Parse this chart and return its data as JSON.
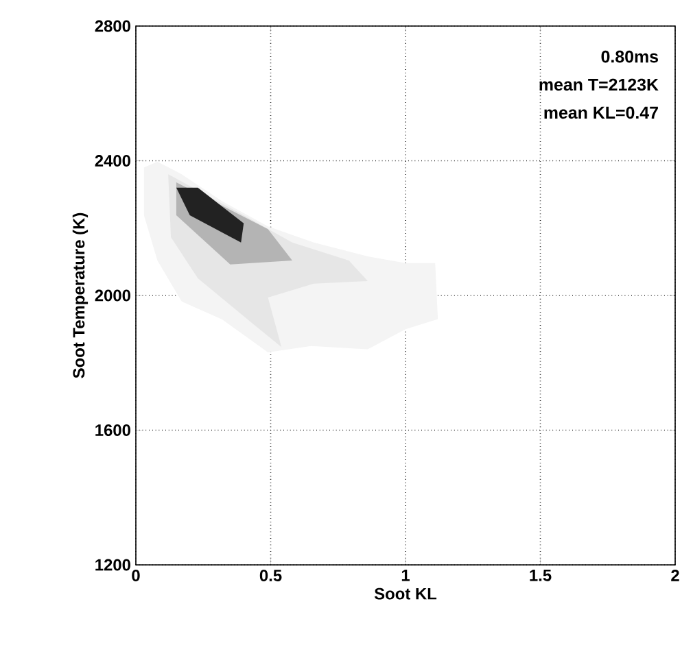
{
  "chart_data": {
    "type": "area",
    "xlabel": "Soot KL",
    "ylabel": "Soot Temperature (K)",
    "annotations": [
      "0.80ms",
      "mean T=2123K",
      "mean KL=0.47"
    ],
    "xlim": [
      0,
      2
    ],
    "ylim": [
      1200,
      2800
    ],
    "xticks": [
      0,
      0.5,
      1,
      1.5,
      2
    ],
    "yticks": [
      1200,
      1600,
      2000,
      2400,
      2800
    ],
    "grid": true,
    "series": [
      {
        "color": "#f4f4f4",
        "x": [
          0.03,
          0.08,
          0.17,
          0.32,
          0.49,
          0.66,
          0.86,
          1.0,
          1.11,
          1.12,
          1.0,
          0.86,
          0.65,
          0.49,
          0.32,
          0.17,
          0.08,
          0.03,
          0.03
        ],
        "values": [
          2380,
          2397,
          2360,
          2280,
          2205,
          2157,
          2116,
          2096,
          2096,
          1930,
          1900,
          1840,
          1850,
          1831,
          1929,
          1982,
          2104,
          2238,
          2380
        ]
      },
      {
        "color": "#e6e6e6",
        "x": [
          0.12,
          0.4,
          0.58,
          0.79,
          0.86,
          0.66,
          0.49,
          0.54,
          0.44,
          0.23,
          0.13,
          0.12
        ],
        "values": [
          2360,
          2238,
          2157,
          2104,
          2043,
          2035,
          1994,
          1847,
          1912,
          2051,
          2173,
          2360
        ]
      },
      {
        "color": "#b4b4b4",
        "x": [
          0.15,
          0.49,
          0.58,
          0.35,
          0.15,
          0.15
        ],
        "values": [
          2336,
          2197,
          2104,
          2092,
          2238,
          2336
        ]
      },
      {
        "color": "#222222",
        "x": [
          0.15,
          0.23,
          0.4,
          0.39,
          0.2,
          0.15
        ],
        "values": [
          2320,
          2320,
          2214,
          2157,
          2238,
          2320
        ]
      }
    ]
  }
}
